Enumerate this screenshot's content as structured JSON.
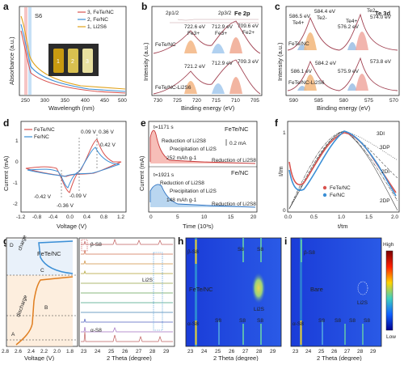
{
  "panels": {
    "a": {
      "letter": "a",
      "ylabel": "Absorbance (a.u.)",
      "xlabel": "Wavelength (nm)",
      "xticks": [
        "250",
        "300",
        "350",
        "400",
        "450",
        "500"
      ],
      "annotation": "S6",
      "legend": [
        "3, FeTe/NC",
        "2, Fe/NC",
        "1, Li2S6"
      ],
      "vials": [
        "1",
        "2",
        "3"
      ],
      "colors": [
        "#d9534f",
        "#3b8fd6",
        "#e0a21a"
      ]
    },
    "b": {
      "letter": "b",
      "title": "Fe 2p",
      "ylabel": "Intensity (a.u.)",
      "xlabel": "Binding energy (eV)",
      "xticks": [
        "730",
        "725",
        "720",
        "715",
        "710",
        "705"
      ],
      "labels": [
        "2p1/2",
        "2p3/2",
        "FeTe/NC",
        "FeTe/NC-Li2S6"
      ],
      "peaks_top": [
        "722.6 eV",
        "Fe3+",
        "712.9 eV",
        "Fe3+",
        "709.6 eV",
        "Fe2+"
      ],
      "peaks_bot": [
        "721.2 eV",
        "712.9 eV",
        "709.3 eV"
      ]
    },
    "c": {
      "letter": "c",
      "title": "Te 3d",
      "ylabel": "Intensity (a.u.)",
      "xlabel": "Binding energy (eV)",
      "xticks": [
        "590",
        "585",
        "580",
        "575",
        "570"
      ],
      "labels": [
        "FeTe/NC",
        "FeTe/NC-Li2S6"
      ],
      "peaks_top": [
        "586.5 eV",
        "584.4 eV",
        "Te4+",
        "Te2-",
        "576.2 eV",
        "Te4+",
        "Te2-",
        "574.0 eV"
      ],
      "peaks_bot": [
        "586.1 eV",
        "584.2 eV",
        "575.9 eV",
        "573.8 eV"
      ]
    },
    "d": {
      "letter": "d",
      "ylabel": "Current (mA)",
      "xlabel": "Voltage (V)",
      "xticks": [
        "-1.2",
        "-0.8",
        "-0.4",
        "0.0",
        "0.4",
        "0.8",
        "1.2"
      ],
      "yticks": [
        "1",
        "0",
        "-1",
        "-2"
      ],
      "legend": [
        "FeTe/NC",
        "Fe/NC"
      ],
      "annotations": [
        "0.09 V",
        "0.36 V",
        "0.42 V",
        "-0.42 V",
        "-0.09 V",
        "-0.36 V"
      ]
    },
    "e": {
      "letter": "e",
      "ylabel": "Current (mA)",
      "xlabel": "Time (10³s)",
      "xticks": [
        "0",
        "5",
        "10",
        "15",
        "20"
      ],
      "top": [
        "FeTe/NC",
        "t=1171 s",
        "Reduction of Li2S8",
        "Precipitation of Li2S",
        "252 mAh g-1",
        "Reduction of Li2S8",
        "0.2 mA"
      ],
      "bottom": [
        "Fe/NC",
        "t=1921 s",
        "Reduction of Li2S8",
        "Precipitation of Li2S",
        "148 mAh g-1",
        "Reduction of Li2S8"
      ]
    },
    "f": {
      "letter": "f",
      "ylabel": "I/Im",
      "xlabel": "t/tm",
      "xticks": [
        "0.0",
        "0.5",
        "1.0",
        "1.5",
        "2.0"
      ],
      "yticks": [
        "1",
        "0"
      ],
      "legend": [
        "FeTe/NC",
        "Fe/NC"
      ],
      "models": [
        "3DI",
        "3DP",
        "2DI",
        "2DP"
      ]
    },
    "g": {
      "letter": "g",
      "xlabel_left": "Voltage (V)",
      "xticks_left": [
        "2.8",
        "2.6",
        "2.4",
        "2.2",
        "2.0",
        "1.8"
      ],
      "xlabel_right": "2 Theta (degree)",
      "xticks_right": [
        "23",
        "24",
        "25",
        "26",
        "27",
        "28",
        "29"
      ],
      "labels": [
        "FeTe/NC",
        "charge",
        "discharge",
        "D",
        "C",
        "B",
        "A",
        "β-S8",
        "Li2S",
        "α-S8"
      ]
    },
    "h": {
      "letter": "h",
      "xlabel": "2 Theta (degree)",
      "xticks": [
        "23",
        "24",
        "25",
        "26",
        "27",
        "28",
        "29"
      ],
      "labels": [
        "β-S8",
        "S8",
        "S8",
        "FeTe/NC",
        "Li2S",
        "α-S8",
        "S8",
        "S8",
        "S8"
      ]
    },
    "i": {
      "letter": "i",
      "xlabel": "2 Theta (degree)",
      "xticks": [
        "23",
        "24",
        "25",
        "26",
        "27",
        "28",
        "29"
      ],
      "labels": [
        "β-S8",
        "Bare",
        "Li2S",
        "α-S8",
        "S8",
        "S8",
        "S8",
        "S8"
      ],
      "colorbar": [
        "High",
        "Low"
      ]
    }
  }
}
